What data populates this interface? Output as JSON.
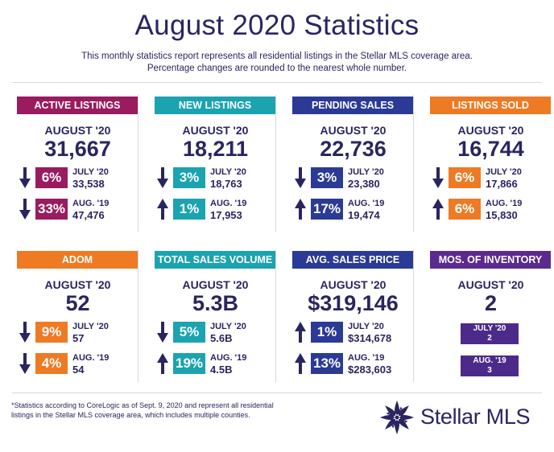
{
  "header": {
    "title": "August 2020 Statistics",
    "subtitle_line1": "This monthly statistics report represents all residential listings in the Stellar MLS coverage area.",
    "subtitle_line2": "Percentage changes are rounded to the nearest whole number."
  },
  "colors": {
    "active": "#9a1b5f",
    "new": "#1ba3b0",
    "pending": "#2a3a95",
    "sold": "#ef7a24",
    "adom": "#ef7a24",
    "volume": "#1ba3b0",
    "price": "#2a3a95",
    "mos": "#5a2a8e",
    "navy": "#2a2560"
  },
  "cards": {
    "active": {
      "header": "ACTIVE LISTINGS",
      "period": "AUGUST '20",
      "value": "31,667",
      "row1": {
        "direction": "down",
        "pct": "6%",
        "label": "JULY '20",
        "value": "33,538"
      },
      "row2": {
        "direction": "down",
        "pct": "33%",
        "label": "AUG. '19",
        "value": "47,476"
      }
    },
    "new": {
      "header": "NEW LISTINGS",
      "period": "AUGUST '20",
      "value": "18,211",
      "row1": {
        "direction": "down",
        "pct": "3%",
        "label": "JULY '20",
        "value": "18,763"
      },
      "row2": {
        "direction": "up",
        "pct": "1%",
        "label": "AUG. '19",
        "value": "17,953"
      }
    },
    "pending": {
      "header": "PENDING SALES",
      "period": "AUGUST '20",
      "value": "22,736",
      "row1": {
        "direction": "down",
        "pct": "3%",
        "label": "JULY '20",
        "value": "23,380"
      },
      "row2": {
        "direction": "up",
        "pct": "17%",
        "label": "AUG. '19",
        "value": "19,474"
      }
    },
    "sold": {
      "header": "LISTINGS SOLD",
      "period": "AUGUST '20",
      "value": "16,744",
      "row1": {
        "direction": "down",
        "pct": "6%",
        "label": "JULY '20",
        "value": "17,866"
      },
      "row2": {
        "direction": "up",
        "pct": "6%",
        "label": "AUG. '19",
        "value": "15,830"
      }
    },
    "adom": {
      "header": "ADOM",
      "period": "AUGUST '20",
      "value": "52",
      "row1": {
        "direction": "down",
        "pct": "9%",
        "label": "JULY '20",
        "value": "57"
      },
      "row2": {
        "direction": "down",
        "pct": "4%",
        "label": "AUG. '19",
        "value": "54"
      }
    },
    "volume": {
      "header": "TOTAL SALES VOLUME",
      "period": "AUGUST '20",
      "value": "5.3B",
      "row1": {
        "direction": "down",
        "pct": "5%",
        "label": "JULY '20",
        "value": "5.6B"
      },
      "row2": {
        "direction": "up",
        "pct": "19%",
        "label": "AUG. '19",
        "value": "4.5B"
      }
    },
    "price": {
      "header": "AVG. SALES PRICE",
      "period": "AUGUST '20",
      "value": "$319,146",
      "row1": {
        "direction": "up",
        "pct": "1%",
        "label": "JULY '20",
        "value": "$314,678"
      },
      "row2": {
        "direction": "up",
        "pct": "13%",
        "label": "AUG. '19",
        "value": "$283,603"
      }
    },
    "mos": {
      "header": "MOS. OF INVENTORY",
      "period": "AUGUST '20",
      "value": "2",
      "row1": {
        "label": "JULY '20",
        "value": "2"
      },
      "row2": {
        "label": "AUG. '19",
        "value": "3"
      }
    }
  },
  "footer": {
    "note_line1": "*Statistics according to CoreLogic as of Sept. 9, 2020 and represent all residential",
    "note_line2": "listings in the Stellar MLS coverage area, which includes multiple counties.",
    "logo_text": "Stellar MLS"
  }
}
